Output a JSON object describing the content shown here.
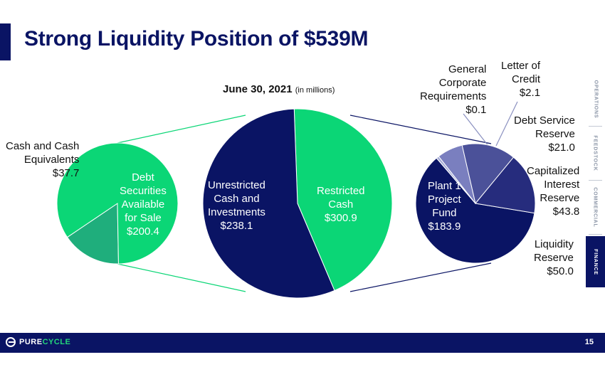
{
  "header": {
    "title": "Strong Liquidity Position of $539M",
    "date_label": "June 30, 2021",
    "unit_note": "(in millions)"
  },
  "colors": {
    "navy": "#0a1464",
    "green": "#0bd676",
    "teal": "#1fae7c"
  },
  "chart_data": [
    {
      "type": "pie",
      "slices": [
        {
          "label_lines": [
            "Cash and Cash",
            "Equivalents",
            "$37.7"
          ],
          "value": 37.7,
          "color": "#1fae7c"
        },
        {
          "label_lines": [
            "Debt",
            "Securities",
            "Available",
            "for Sale",
            "$200.4"
          ],
          "value": 200.4,
          "color": "#0bd676"
        }
      ]
    },
    {
      "type": "pie",
      "slices": [
        {
          "label_lines": [
            "Unrestricted",
            "Cash and",
            "Investments",
            "$238.1"
          ],
          "value": 238.1,
          "color": "#0bd676"
        },
        {
          "label_lines": [
            "Restricted",
            "Cash",
            "$300.9"
          ],
          "value": 300.9,
          "color": "#0a1464"
        }
      ]
    },
    {
      "type": "pie",
      "slices": [
        {
          "label_lines": [
            "Plant 1",
            "Project",
            "Fund",
            "$183.9"
          ],
          "value": 183.9,
          "color": "#0a1464"
        },
        {
          "label_lines": [
            "General",
            "Corporate",
            "Requirements",
            "$0.1"
          ],
          "value": 0.1,
          "color": "#9aa3d8"
        },
        {
          "label_lines": [
            "Letter of",
            "Credit",
            "$2.1"
          ],
          "value": 2.1,
          "color": "#a5acd6"
        },
        {
          "label_lines": [
            "Debt Service",
            "Reserve",
            "$21.0"
          ],
          "value": 21.0,
          "color": "#7a7fbf"
        },
        {
          "label_lines": [
            "Capitalized",
            "Interest",
            "Reserve",
            "$43.8"
          ],
          "value": 43.8,
          "color": "#4b5199"
        },
        {
          "label_lines": [
            "Liquidity",
            "Reserve",
            "$50.0"
          ],
          "value": 50.0,
          "color": "#262c7d"
        }
      ]
    }
  ],
  "sidenav": {
    "items": [
      "OPERATIONS",
      "FEEDSTOCK",
      "COMMERCIAL",
      "FINANCE"
    ],
    "active": "FINANCE"
  },
  "footer": {
    "logo_part1": "PURE",
    "logo_part2": "CYCLE",
    "page_number": "15"
  }
}
